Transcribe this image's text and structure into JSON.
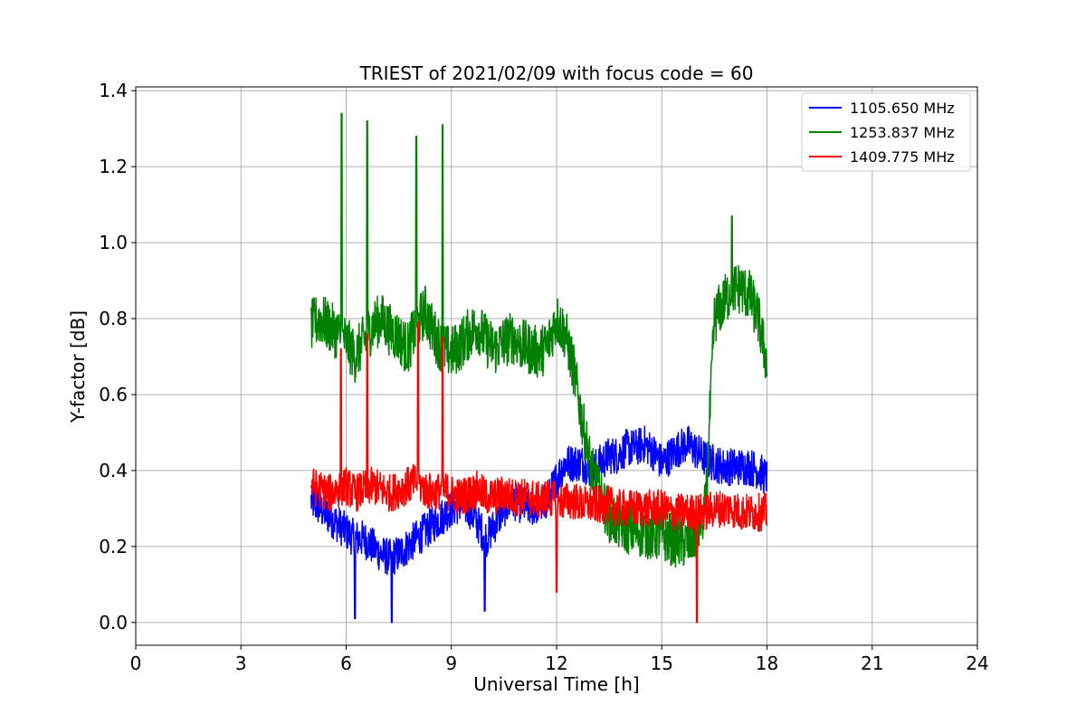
{
  "chart_data": {
    "type": "line",
    "title": "TRIEST of 2021/02/09 with focus code = 60",
    "xlabel": "Universal Time [h]",
    "ylabel": "Y-factor [dB]",
    "xlim": [
      0,
      24
    ],
    "ylim": [
      -0.06,
      1.41
    ],
    "xticks": [
      0,
      3,
      6,
      9,
      12,
      15,
      18,
      21,
      24
    ],
    "xtick_labels": [
      "0",
      "3",
      "6",
      "9",
      "12",
      "15",
      "18",
      "21",
      "24"
    ],
    "yticks": [
      0.0,
      0.2,
      0.4,
      0.6,
      0.8,
      1.0,
      1.2,
      1.4
    ],
    "ytick_labels": [
      "0.0",
      "0.2",
      "0.4",
      "0.6",
      "0.8",
      "1.0",
      "1.2",
      "1.4"
    ],
    "grid": true,
    "legend_position": "top-right",
    "series": [
      {
        "name": "1105.650 MHz",
        "color": "#0000ff",
        "x": [
          5.0,
          5.25,
          5.5,
          5.75,
          6.0,
          6.25,
          6.5,
          6.75,
          7.0,
          7.25,
          7.5,
          7.75,
          8.0,
          8.25,
          8.5,
          8.75,
          9.0,
          9.25,
          9.5,
          9.75,
          10.0,
          10.25,
          10.5,
          10.75,
          11.0,
          11.25,
          11.5,
          11.75,
          12.0,
          12.25,
          12.5,
          12.75,
          13.0,
          13.25,
          13.5,
          13.75,
          14.0,
          14.25,
          14.5,
          14.75,
          15.0,
          15.25,
          15.5,
          15.75,
          16.0,
          16.25,
          16.5,
          16.75,
          17.0,
          17.25,
          17.5,
          17.75,
          18.0
        ],
        "y": [
          0.32,
          0.3,
          0.28,
          0.26,
          0.24,
          0.22,
          0.22,
          0.2,
          0.18,
          0.17,
          0.18,
          0.2,
          0.22,
          0.24,
          0.26,
          0.28,
          0.3,
          0.31,
          0.3,
          0.26,
          0.22,
          0.26,
          0.3,
          0.32,
          0.31,
          0.3,
          0.31,
          0.32,
          0.38,
          0.42,
          0.42,
          0.42,
          0.4,
          0.42,
          0.44,
          0.44,
          0.46,
          0.46,
          0.47,
          0.45,
          0.42,
          0.44,
          0.46,
          0.47,
          0.45,
          0.43,
          0.42,
          0.41,
          0.41,
          0.41,
          0.41,
          0.4,
          0.38
        ],
        "noise": 0.05
      },
      {
        "name": "1253.837 MHz",
        "color": "#008000",
        "x": [
          5.0,
          5.25,
          5.5,
          5.75,
          6.0,
          6.25,
          6.5,
          6.75,
          7.0,
          7.25,
          7.5,
          7.75,
          8.0,
          8.25,
          8.5,
          8.75,
          9.0,
          9.25,
          9.5,
          9.75,
          10.0,
          10.25,
          10.5,
          10.75,
          11.0,
          11.25,
          11.5,
          11.75,
          12.0,
          12.25,
          12.5,
          12.75,
          13.0,
          13.25,
          13.5,
          13.75,
          14.0,
          14.25,
          14.5,
          14.75,
          15.0,
          15.25,
          15.5,
          15.75,
          16.0,
          16.25,
          16.5,
          16.75,
          17.0,
          17.25,
          17.5,
          17.75,
          18.0
        ],
        "y": [
          0.78,
          0.8,
          0.78,
          0.76,
          0.74,
          0.7,
          0.74,
          0.78,
          0.8,
          0.77,
          0.75,
          0.72,
          0.78,
          0.82,
          0.76,
          0.72,
          0.71,
          0.73,
          0.76,
          0.78,
          0.74,
          0.72,
          0.74,
          0.75,
          0.73,
          0.72,
          0.71,
          0.73,
          0.8,
          0.76,
          0.66,
          0.52,
          0.4,
          0.33,
          0.28,
          0.26,
          0.25,
          0.24,
          0.24,
          0.23,
          0.23,
          0.22,
          0.21,
          0.21,
          0.24,
          0.3,
          0.8,
          0.84,
          0.88,
          0.88,
          0.86,
          0.8,
          0.68
        ],
        "noise": 0.07
      },
      {
        "name": "1409.775 MHz",
        "color": "#ff0000",
        "x": [
          5.0,
          5.25,
          5.5,
          5.75,
          6.0,
          6.25,
          6.5,
          6.75,
          7.0,
          7.25,
          7.5,
          7.75,
          8.0,
          8.25,
          8.5,
          8.75,
          9.0,
          9.25,
          9.5,
          9.75,
          10.0,
          10.25,
          10.5,
          10.75,
          11.0,
          11.25,
          11.5,
          11.75,
          12.0,
          12.25,
          12.5,
          12.75,
          13.0,
          13.25,
          13.5,
          13.75,
          14.0,
          14.25,
          14.5,
          14.75,
          15.0,
          15.25,
          15.5,
          15.75,
          16.0,
          16.25,
          16.5,
          16.75,
          17.0,
          17.25,
          17.5,
          17.75,
          18.0
        ],
        "y": [
          0.36,
          0.35,
          0.34,
          0.35,
          0.36,
          0.34,
          0.35,
          0.36,
          0.35,
          0.34,
          0.35,
          0.36,
          0.37,
          0.35,
          0.34,
          0.35,
          0.34,
          0.33,
          0.34,
          0.35,
          0.33,
          0.33,
          0.34,
          0.33,
          0.33,
          0.33,
          0.32,
          0.33,
          0.32,
          0.32,
          0.32,
          0.31,
          0.31,
          0.31,
          0.31,
          0.3,
          0.3,
          0.3,
          0.3,
          0.3,
          0.3,
          0.29,
          0.29,
          0.29,
          0.29,
          0.29,
          0.3,
          0.3,
          0.3,
          0.29,
          0.29,
          0.29,
          0.29
        ],
        "noise": 0.05
      }
    ],
    "spikes": [
      {
        "series": 1,
        "x": 5.87,
        "y": 1.34
      },
      {
        "series": 1,
        "x": 6.6,
        "y": 1.32
      },
      {
        "series": 1,
        "x": 8.0,
        "y": 1.28
      },
      {
        "series": 1,
        "x": 8.75,
        "y": 1.31
      },
      {
        "series": 1,
        "x": 16.15,
        "y": 0.25
      },
      {
        "series": 1,
        "x": 17.0,
        "y": 1.07
      },
      {
        "series": 0,
        "x": 6.25,
        "y": 0.01
      },
      {
        "series": 0,
        "x": 7.3,
        "y": 0.0
      },
      {
        "series": 0,
        "x": 9.95,
        "y": 0.03
      },
      {
        "series": 2,
        "x": 5.85,
        "y": 0.72
      },
      {
        "series": 2,
        "x": 6.6,
        "y": 0.76
      },
      {
        "series": 2,
        "x": 8.05,
        "y": 0.79
      },
      {
        "series": 2,
        "x": 8.75,
        "y": 0.75
      },
      {
        "series": 2,
        "x": 12.0,
        "y": 0.08
      },
      {
        "series": 2,
        "x": 16.0,
        "y": 0.0
      }
    ]
  }
}
